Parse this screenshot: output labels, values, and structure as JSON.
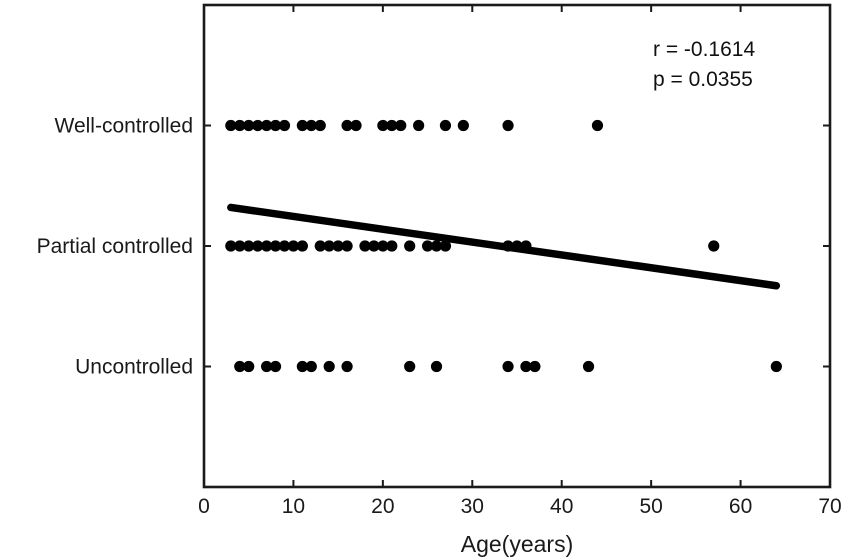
{
  "chart_data": {
    "type": "scatter",
    "title": "",
    "xlabel": "Age(years)",
    "ylabel": "",
    "xlim": [
      0,
      70
    ],
    "xticks": [
      0,
      10,
      20,
      30,
      40,
      50,
      60,
      70
    ],
    "ylim": [
      0,
      4
    ],
    "yticks": [
      {
        "value": 1,
        "label": "Uncontrolled"
      },
      {
        "value": 2,
        "label": "Partial controlled"
      },
      {
        "value": 3,
        "label": "Well-controlled"
      }
    ],
    "grid": false,
    "annotations": [
      "r = -0.1614",
      "p = 0.0355"
    ],
    "colors": {
      "marker": "#000000",
      "fit_line": "#000000",
      "axes": "#1a1a1a"
    },
    "points": [
      {
        "x": 3,
        "y": 3
      },
      {
        "x": 4,
        "y": 3
      },
      {
        "x": 5,
        "y": 3
      },
      {
        "x": 6,
        "y": 3
      },
      {
        "x": 7,
        "y": 3
      },
      {
        "x": 8,
        "y": 3
      },
      {
        "x": 9,
        "y": 3
      },
      {
        "x": 11,
        "y": 3
      },
      {
        "x": 12,
        "y": 3
      },
      {
        "x": 13,
        "y": 3
      },
      {
        "x": 16,
        "y": 3
      },
      {
        "x": 17,
        "y": 3
      },
      {
        "x": 20,
        "y": 3
      },
      {
        "x": 21,
        "y": 3
      },
      {
        "x": 22,
        "y": 3
      },
      {
        "x": 24,
        "y": 3
      },
      {
        "x": 27,
        "y": 3
      },
      {
        "x": 29,
        "y": 3
      },
      {
        "x": 34,
        "y": 3
      },
      {
        "x": 44,
        "y": 3
      },
      {
        "x": 3,
        "y": 2
      },
      {
        "x": 4,
        "y": 2
      },
      {
        "x": 5,
        "y": 2
      },
      {
        "x": 6,
        "y": 2
      },
      {
        "x": 7,
        "y": 2
      },
      {
        "x": 8,
        "y": 2
      },
      {
        "x": 9,
        "y": 2
      },
      {
        "x": 10,
        "y": 2
      },
      {
        "x": 11,
        "y": 2
      },
      {
        "x": 13,
        "y": 2
      },
      {
        "x": 14,
        "y": 2
      },
      {
        "x": 15,
        "y": 2
      },
      {
        "x": 16,
        "y": 2
      },
      {
        "x": 18,
        "y": 2
      },
      {
        "x": 19,
        "y": 2
      },
      {
        "x": 20,
        "y": 2
      },
      {
        "x": 21,
        "y": 2
      },
      {
        "x": 23,
        "y": 2
      },
      {
        "x": 25,
        "y": 2
      },
      {
        "x": 26,
        "y": 2
      },
      {
        "x": 27,
        "y": 2
      },
      {
        "x": 34,
        "y": 2
      },
      {
        "x": 35,
        "y": 2
      },
      {
        "x": 36,
        "y": 2
      },
      {
        "x": 57,
        "y": 2
      },
      {
        "x": 4,
        "y": 1
      },
      {
        "x": 5,
        "y": 1
      },
      {
        "x": 7,
        "y": 1
      },
      {
        "x": 8,
        "y": 1
      },
      {
        "x": 11,
        "y": 1
      },
      {
        "x": 12,
        "y": 1
      },
      {
        "x": 14,
        "y": 1
      },
      {
        "x": 16,
        "y": 1
      },
      {
        "x": 23,
        "y": 1
      },
      {
        "x": 26,
        "y": 1
      },
      {
        "x": 34,
        "y": 1
      },
      {
        "x": 36,
        "y": 1
      },
      {
        "x": 37,
        "y": 1
      },
      {
        "x": 43,
        "y": 1
      },
      {
        "x": 64,
        "y": 1
      }
    ],
    "fit_line": {
      "x": [
        3,
        64
      ],
      "y": [
        2.32,
        1.67
      ]
    }
  }
}
